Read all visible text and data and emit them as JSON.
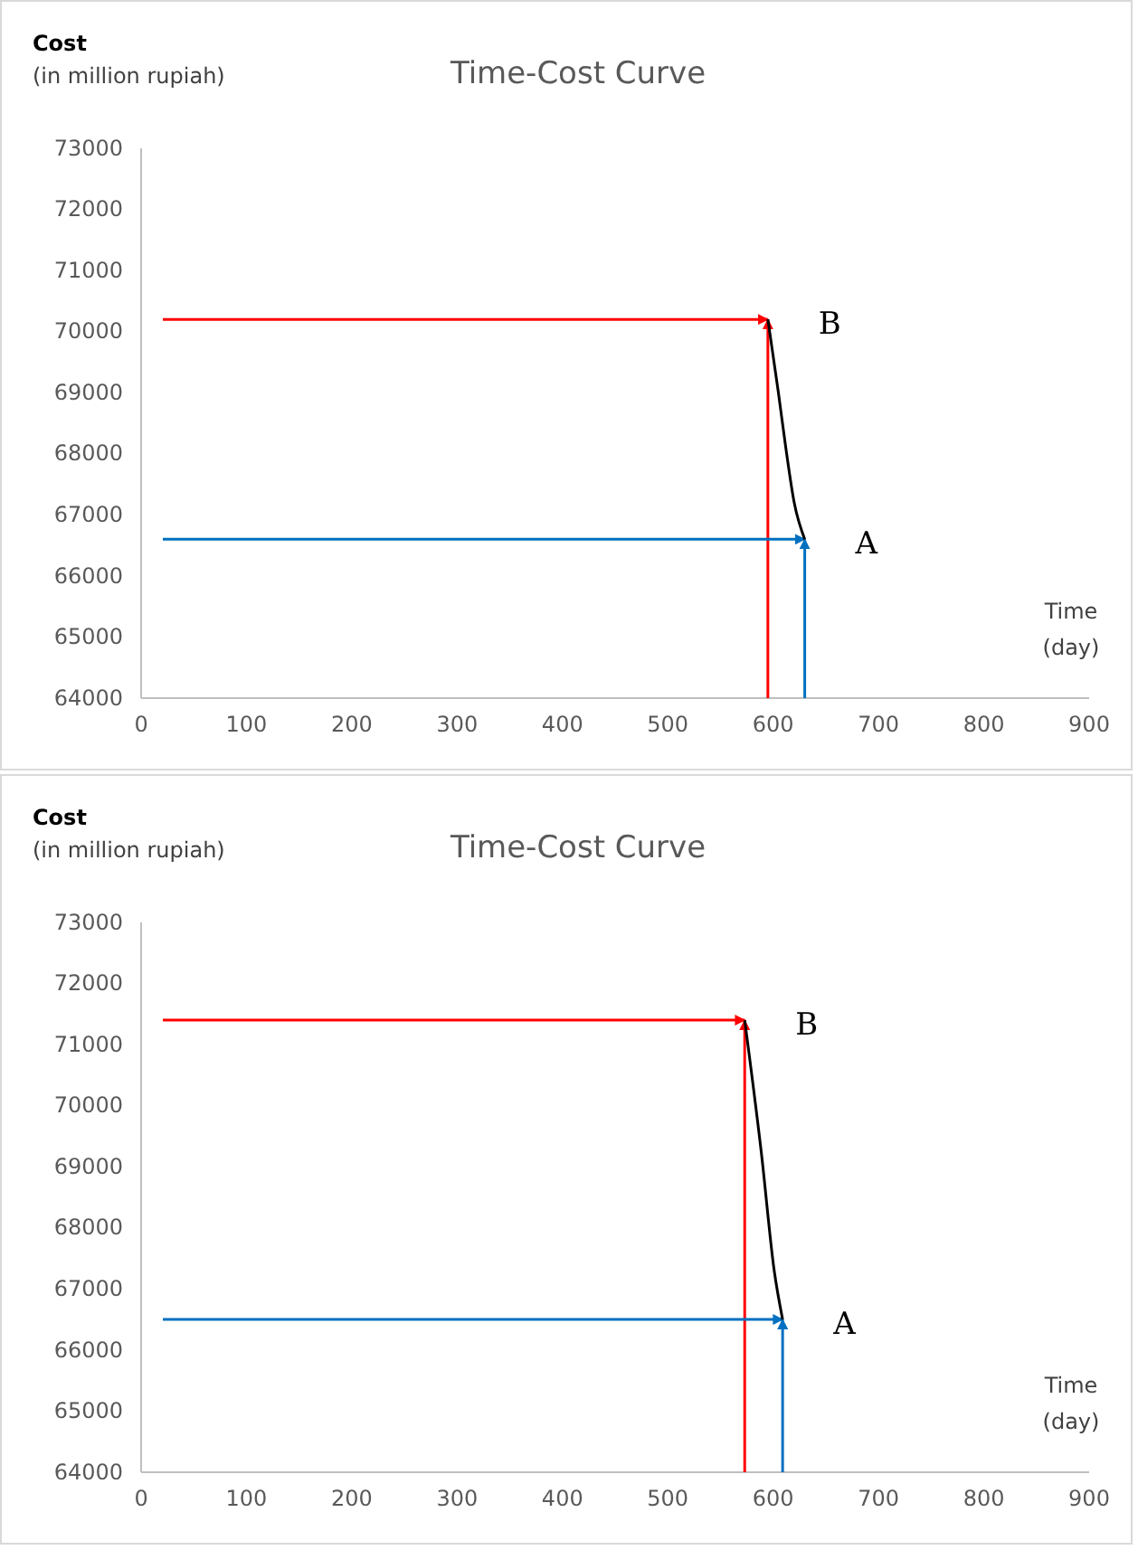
{
  "chart_data": [
    {
      "type": "line",
      "title": "Time-Cost Curve",
      "xlabel": "Time\n(day)",
      "ylabel": "Cost\n(in million rupiah)",
      "xlim": [
        0,
        900
      ],
      "xticks": [
        0,
        100,
        200,
        300,
        400,
        500,
        600,
        700,
        800,
        900
      ],
      "ylim": [
        64000,
        73000
      ],
      "yticks": [
        64000,
        65000,
        66000,
        67000,
        68000,
        69000,
        70000,
        71000,
        72000,
        73000
      ],
      "grid": false,
      "series": [
        {
          "color": "#000000",
          "x": [
            595,
            605,
            612,
            620,
            630
          ],
          "values": [
            70200,
            69000,
            68100,
            67200,
            66600
          ]
        }
      ],
      "ref_lines": [
        {
          "axis": "y",
          "value": 70200,
          "color": "#ff0000"
        },
        {
          "axis": "x",
          "value": 595,
          "color": "#ff0000"
        },
        {
          "axis": "y",
          "value": 66600,
          "color": "#0070c0"
        },
        {
          "axis": "x",
          "value": 630,
          "color": "#0070c0"
        }
      ],
      "annotations": [
        {
          "text": "B",
          "x": 595,
          "y": 70200
        },
        {
          "text": "A",
          "x": 630,
          "y": 66600
        }
      ]
    },
    {
      "type": "line",
      "title": "Time-Cost Curve",
      "xlabel": "Time\n(day)",
      "ylabel": "Cost\n(in million rupiah)",
      "xlim": [
        0,
        900
      ],
      "xticks": [
        0,
        100,
        200,
        300,
        400,
        500,
        600,
        700,
        800,
        900
      ],
      "ylim": [
        64000,
        73000
      ],
      "yticks": [
        64000,
        65000,
        66000,
        67000,
        68000,
        69000,
        70000,
        71000,
        72000,
        73000
      ],
      "grid": false,
      "series": [
        {
          "color": "#000000",
          "x": [
            573,
            589,
            601,
            609
          ],
          "values": [
            71400,
            69200,
            67300,
            66500
          ]
        }
      ],
      "ref_lines": [
        {
          "axis": "y",
          "value": 71400,
          "color": "#ff0000"
        },
        {
          "axis": "x",
          "value": 573,
          "color": "#ff0000"
        },
        {
          "axis": "y",
          "value": 66500,
          "color": "#0070c0"
        },
        {
          "axis": "x",
          "value": 609,
          "color": "#0070c0"
        }
      ],
      "annotations": [
        {
          "text": "B",
          "x": 573,
          "y": 71400
        },
        {
          "text": "A",
          "x": 609,
          "y": 66500
        }
      ]
    }
  ]
}
